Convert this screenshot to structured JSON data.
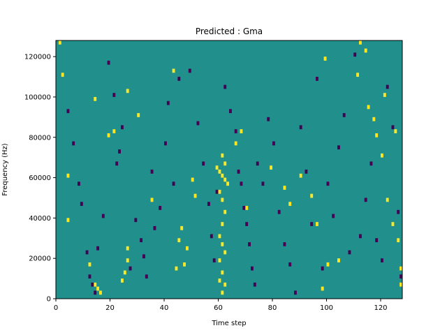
{
  "chart_data": {
    "type": "heatmap",
    "title": "Predicted : Gma",
    "xlabel": "Time step",
    "ylabel": "Frequency (Hz)",
    "xlim": [
      0,
      128
    ],
    "ylim": [
      0,
      128000
    ],
    "x_ticks": [
      0,
      20,
      40,
      60,
      80,
      100,
      120
    ],
    "y_ticks": [
      0,
      20000,
      40000,
      60000,
      80000,
      100000,
      120000
    ],
    "x_tick_labels": [
      "0",
      "20",
      "40",
      "60",
      "80",
      "100",
      "120"
    ],
    "y_tick_labels": [
      "0",
      "20000",
      "40000",
      "60000",
      "80000",
      "100000",
      "120000"
    ],
    "colormap": "viridis",
    "value_levels": [
      -1,
      0,
      1
    ],
    "colors": {
      "background": "#21908d",
      "low": "#440154",
      "high": "#fde725"
    },
    "cells": {
      "high": [
        [
          1,
          126000
        ],
        [
          2,
          110000
        ],
        [
          4,
          60000
        ],
        [
          4,
          38000
        ],
        [
          14,
          98000
        ],
        [
          19,
          80000
        ],
        [
          21,
          82000
        ],
        [
          26,
          102000
        ],
        [
          30,
          90000
        ],
        [
          35,
          48000
        ],
        [
          43,
          112000
        ],
        [
          50,
          58000
        ],
        [
          51,
          50000
        ],
        [
          59,
          64000
        ],
        [
          60,
          62000
        ],
        [
          61,
          60000
        ],
        [
          62,
          58000
        ],
        [
          63,
          56000
        ],
        [
          60,
          52000
        ],
        [
          61,
          48000
        ],
        [
          62,
          42000
        ],
        [
          61,
          36000
        ],
        [
          60,
          30000
        ],
        [
          61,
          26000
        ],
        [
          62,
          22000
        ],
        [
          60,
          18000
        ],
        [
          61,
          12000
        ],
        [
          62,
          6000
        ],
        [
          61,
          2000
        ],
        [
          61,
          70000
        ],
        [
          62,
          66000
        ],
        [
          60,
          8000
        ],
        [
          12,
          16000
        ],
        [
          14,
          6000
        ],
        [
          15,
          4000
        ],
        [
          16,
          2000
        ],
        [
          26,
          24000
        ],
        [
          26,
          18000
        ],
        [
          25,
          12000
        ],
        [
          24,
          8000
        ],
        [
          44,
          14000
        ],
        [
          45,
          28000
        ],
        [
          46,
          34000
        ],
        [
          48,
          24000
        ],
        [
          47,
          16000
        ],
        [
          66,
          76000
        ],
        [
          68,
          82000
        ],
        [
          70,
          44000
        ],
        [
          79,
          64000
        ],
        [
          84,
          54000
        ],
        [
          86,
          46000
        ],
        [
          90,
          60000
        ],
        [
          94,
          50000
        ],
        [
          96,
          36000
        ],
        [
          98,
          4000
        ],
        [
          100,
          16000
        ],
        [
          104,
          18000
        ],
        [
          112,
          126000
        ],
        [
          114,
          122000
        ],
        [
          115,
          94000
        ],
        [
          118,
          80000
        ],
        [
          120,
          70000
        ],
        [
          122,
          48000
        ],
        [
          124,
          36000
        ],
        [
          126,
          28000
        ],
        [
          127,
          14000
        ],
        [
          127,
          6000
        ],
        [
          125,
          82000
        ],
        [
          121,
          100000
        ],
        [
          117,
          88000
        ],
        [
          111,
          110000
        ],
        [
          99,
          118000
        ]
      ],
      "low": [
        [
          4,
          92000
        ],
        [
          6,
          76000
        ],
        [
          8,
          56000
        ],
        [
          9,
          46000
        ],
        [
          11,
          22000
        ],
        [
          12,
          10000
        ],
        [
          13,
          6000
        ],
        [
          14,
          2000
        ],
        [
          15,
          24000
        ],
        [
          17,
          40000
        ],
        [
          19,
          116000
        ],
        [
          21,
          100000
        ],
        [
          22,
          66000
        ],
        [
          23,
          72000
        ],
        [
          24,
          84000
        ],
        [
          27,
          14000
        ],
        [
          29,
          38000
        ],
        [
          31,
          28000
        ],
        [
          32,
          20000
        ],
        [
          33,
          10000
        ],
        [
          35,
          62000
        ],
        [
          36,
          34000
        ],
        [
          38,
          44000
        ],
        [
          40,
          76000
        ],
        [
          41,
          96000
        ],
        [
          43,
          56000
        ],
        [
          45,
          108000
        ],
        [
          49,
          112000
        ],
        [
          52,
          86000
        ],
        [
          54,
          66000
        ],
        [
          56,
          46000
        ],
        [
          57,
          30000
        ],
        [
          58,
          18000
        ],
        [
          59,
          52000
        ],
        [
          62,
          104000
        ],
        [
          64,
          92000
        ],
        [
          66,
          82000
        ],
        [
          67,
          62000
        ],
        [
          68,
          56000
        ],
        [
          69,
          44000
        ],
        [
          70,
          36000
        ],
        [
          71,
          26000
        ],
        [
          72,
          14000
        ],
        [
          73,
          6000
        ],
        [
          74,
          66000
        ],
        [
          76,
          56000
        ],
        [
          78,
          88000
        ],
        [
          80,
          76000
        ],
        [
          82,
          42000
        ],
        [
          84,
          26000
        ],
        [
          86,
          16000
        ],
        [
          88,
          2000
        ],
        [
          90,
          84000
        ],
        [
          92,
          62000
        ],
        [
          94,
          36000
        ],
        [
          96,
          108000
        ],
        [
          98,
          14000
        ],
        [
          100,
          56000
        ],
        [
          102,
          40000
        ],
        [
          104,
          74000
        ],
        [
          106,
          90000
        ],
        [
          108,
          22000
        ],
        [
          110,
          120000
        ],
        [
          112,
          30000
        ],
        [
          114,
          48000
        ],
        [
          116,
          66000
        ],
        [
          118,
          28000
        ],
        [
          120,
          18000
        ],
        [
          122,
          104000
        ],
        [
          124,
          84000
        ],
        [
          126,
          42000
        ],
        [
          127,
          10000
        ]
      ]
    }
  }
}
